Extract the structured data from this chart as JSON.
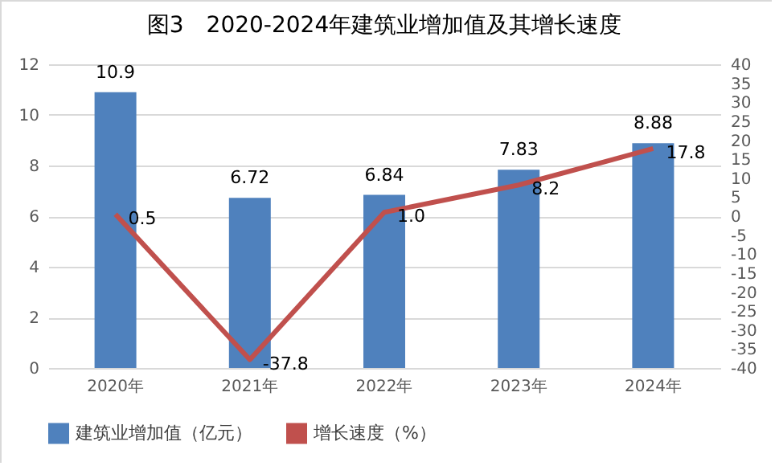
{
  "chart_data": {
    "type": "bar",
    "title": "图3　2020-2024年建筑业增加值及其增长速度",
    "categories": [
      "2020年",
      "2021年",
      "2022年",
      "2023年",
      "2024年"
    ],
    "series": [
      {
        "name": "建筑业增加值（亿元）",
        "type": "bar",
        "color": "#4f81bd",
        "values": [
          10.9,
          6.72,
          6.84,
          7.83,
          8.88
        ]
      },
      {
        "name": "增长速度（%）",
        "type": "line",
        "axis": "y2",
        "color": "#c0504d",
        "values": [
          0.5,
          -37.8,
          1.0,
          8.2,
          17.8
        ],
        "value_labels": [
          "0.5",
          "-37.8",
          "1.0",
          "8.2",
          "17.8"
        ]
      }
    ],
    "ylim": [
      0,
      12
    ],
    "yticks": [
      0,
      2,
      4,
      6,
      8,
      10,
      12
    ],
    "y2lim": [
      -40,
      40
    ],
    "y2ticks": [
      -40,
      -35,
      -30,
      -25,
      -20,
      -15,
      -10,
      -5,
      0,
      5,
      10,
      15,
      20,
      25,
      30,
      35,
      40
    ],
    "data_labels": true,
    "grid": "y",
    "legend": "bottom",
    "marker": "none",
    "line_style": "solid"
  }
}
